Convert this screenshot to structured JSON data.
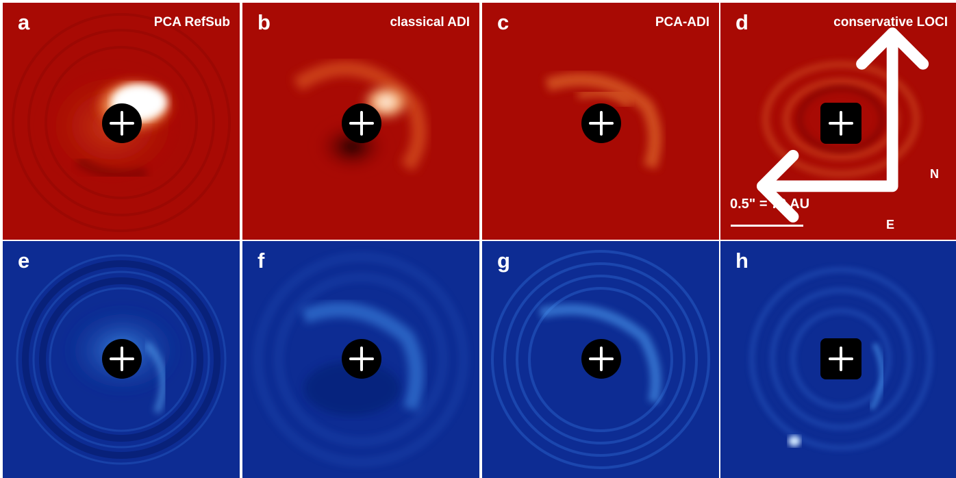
{
  "colors": {
    "top_row_background": "#a80a04",
    "bottom_row_background": "#0d2c93",
    "mask": "#000000",
    "annotation": "#ffffff",
    "separator": "#ffffff"
  },
  "panels": [
    {
      "letter": "a",
      "label": "PCA RefSub",
      "row": "top"
    },
    {
      "letter": "b",
      "label": "classical ADI",
      "row": "top"
    },
    {
      "letter": "c",
      "label": "PCA-ADI",
      "row": "top"
    },
    {
      "letter": "d",
      "label": "conservative LOCI",
      "row": "top"
    },
    {
      "letter": "e",
      "label": "",
      "row": "bottom"
    },
    {
      "letter": "f",
      "label": "",
      "row": "bottom"
    },
    {
      "letter": "g",
      "label": "",
      "row": "bottom"
    },
    {
      "letter": "h",
      "label": "",
      "row": "bottom"
    }
  ],
  "scale": {
    "label": "0.5\" = 70 AU"
  },
  "compass": {
    "north": "N",
    "east": "E"
  },
  "icons": {
    "center_mark": "plus-icon",
    "compass": "compass-arrows-icon"
  }
}
